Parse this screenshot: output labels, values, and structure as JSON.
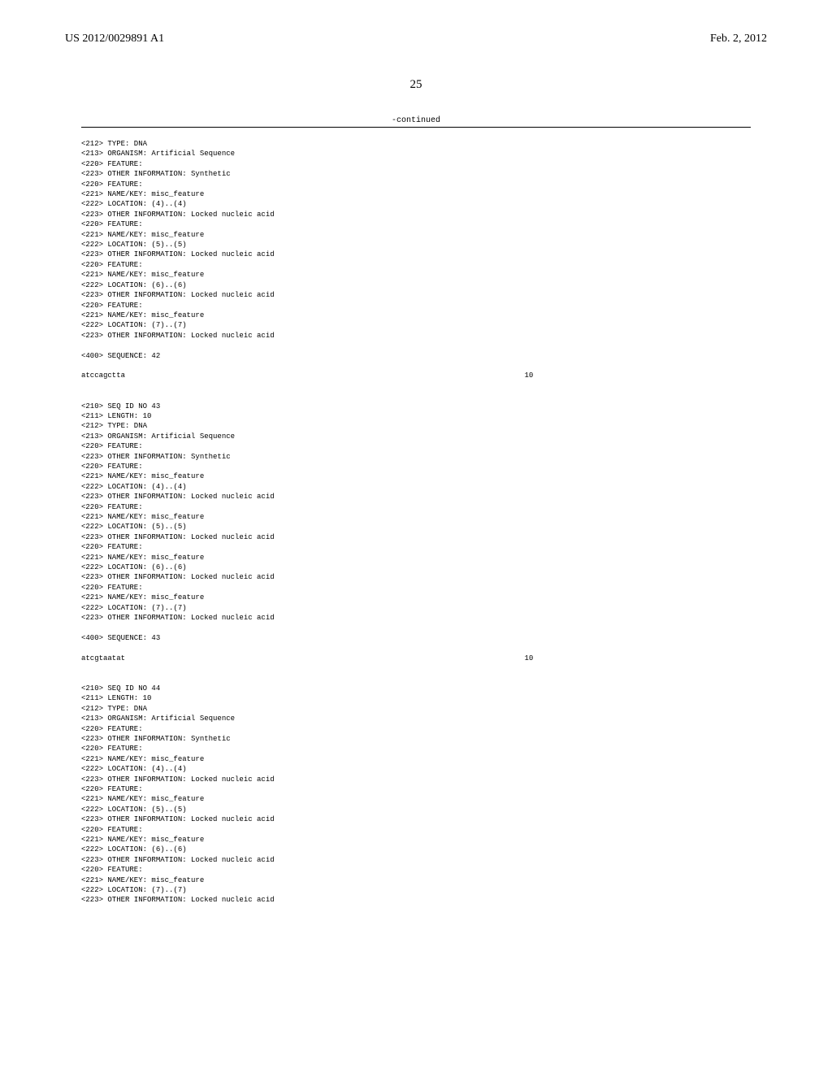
{
  "header": {
    "application_number": "US 2012/0029891 A1",
    "publication_date": "Feb. 2, 2012"
  },
  "page_number": "25",
  "continued_label": "-continued",
  "seq_length_label": "10",
  "entries": [
    {
      "prefix_lines": [
        "<212> TYPE: DNA",
        "<213> ORGANISM: Artificial Sequence",
        "<220> FEATURE:",
        "<223> OTHER INFORMATION: Synthetic",
        "<220> FEATURE:",
        "<221> NAME/KEY: misc_feature",
        "<222> LOCATION: (4)..(4)",
        "<223> OTHER INFORMATION: Locked nucleic acid",
        "<220> FEATURE:",
        "<221> NAME/KEY: misc_feature",
        "<222> LOCATION: (5)..(5)",
        "<223> OTHER INFORMATION: Locked nucleic acid",
        "<220> FEATURE:",
        "<221> NAME/KEY: misc_feature",
        "<222> LOCATION: (6)..(6)",
        "<223> OTHER INFORMATION: Locked nucleic acid",
        "<220> FEATURE:",
        "<221> NAME/KEY: misc_feature",
        "<222> LOCATION: (7)..(7)",
        "<223> OTHER INFORMATION: Locked nucleic acid"
      ],
      "sequence_header": "<400> SEQUENCE: 42",
      "sequence": "atccagctta"
    },
    {
      "prefix_lines": [
        "<210> SEQ ID NO 43",
        "<211> LENGTH: 10",
        "<212> TYPE: DNA",
        "<213> ORGANISM: Artificial Sequence",
        "<220> FEATURE:",
        "<223> OTHER INFORMATION: Synthetic",
        "<220> FEATURE:",
        "<221> NAME/KEY: misc_feature",
        "<222> LOCATION: (4)..(4)",
        "<223> OTHER INFORMATION: Locked nucleic acid",
        "<220> FEATURE:",
        "<221> NAME/KEY: misc_feature",
        "<222> LOCATION: (5)..(5)",
        "<223> OTHER INFORMATION: Locked nucleic acid",
        "<220> FEATURE:",
        "<221> NAME/KEY: misc_feature",
        "<222> LOCATION: (6)..(6)",
        "<223> OTHER INFORMATION: Locked nucleic acid",
        "<220> FEATURE:",
        "<221> NAME/KEY: misc_feature",
        "<222> LOCATION: (7)..(7)",
        "<223> OTHER INFORMATION: Locked nucleic acid"
      ],
      "sequence_header": "<400> SEQUENCE: 43",
      "sequence": "atcgtaatat"
    },
    {
      "prefix_lines": [
        "<210> SEQ ID NO 44",
        "<211> LENGTH: 10",
        "<212> TYPE: DNA",
        "<213> ORGANISM: Artificial Sequence",
        "<220> FEATURE:",
        "<223> OTHER INFORMATION: Synthetic",
        "<220> FEATURE:",
        "<221> NAME/KEY: misc_feature",
        "<222> LOCATION: (4)..(4)",
        "<223> OTHER INFORMATION: Locked nucleic acid",
        "<220> FEATURE:",
        "<221> NAME/KEY: misc_feature",
        "<222> LOCATION: (5)..(5)",
        "<223> OTHER INFORMATION: Locked nucleic acid",
        "<220> FEATURE:",
        "<221> NAME/KEY: misc_feature",
        "<222> LOCATION: (6)..(6)",
        "<223> OTHER INFORMATION: Locked nucleic acid",
        "<220> FEATURE:",
        "<221> NAME/KEY: misc_feature",
        "<222> LOCATION: (7)..(7)",
        "<223> OTHER INFORMATION: Locked nucleic acid"
      ],
      "sequence_header": "",
      "sequence": ""
    }
  ]
}
